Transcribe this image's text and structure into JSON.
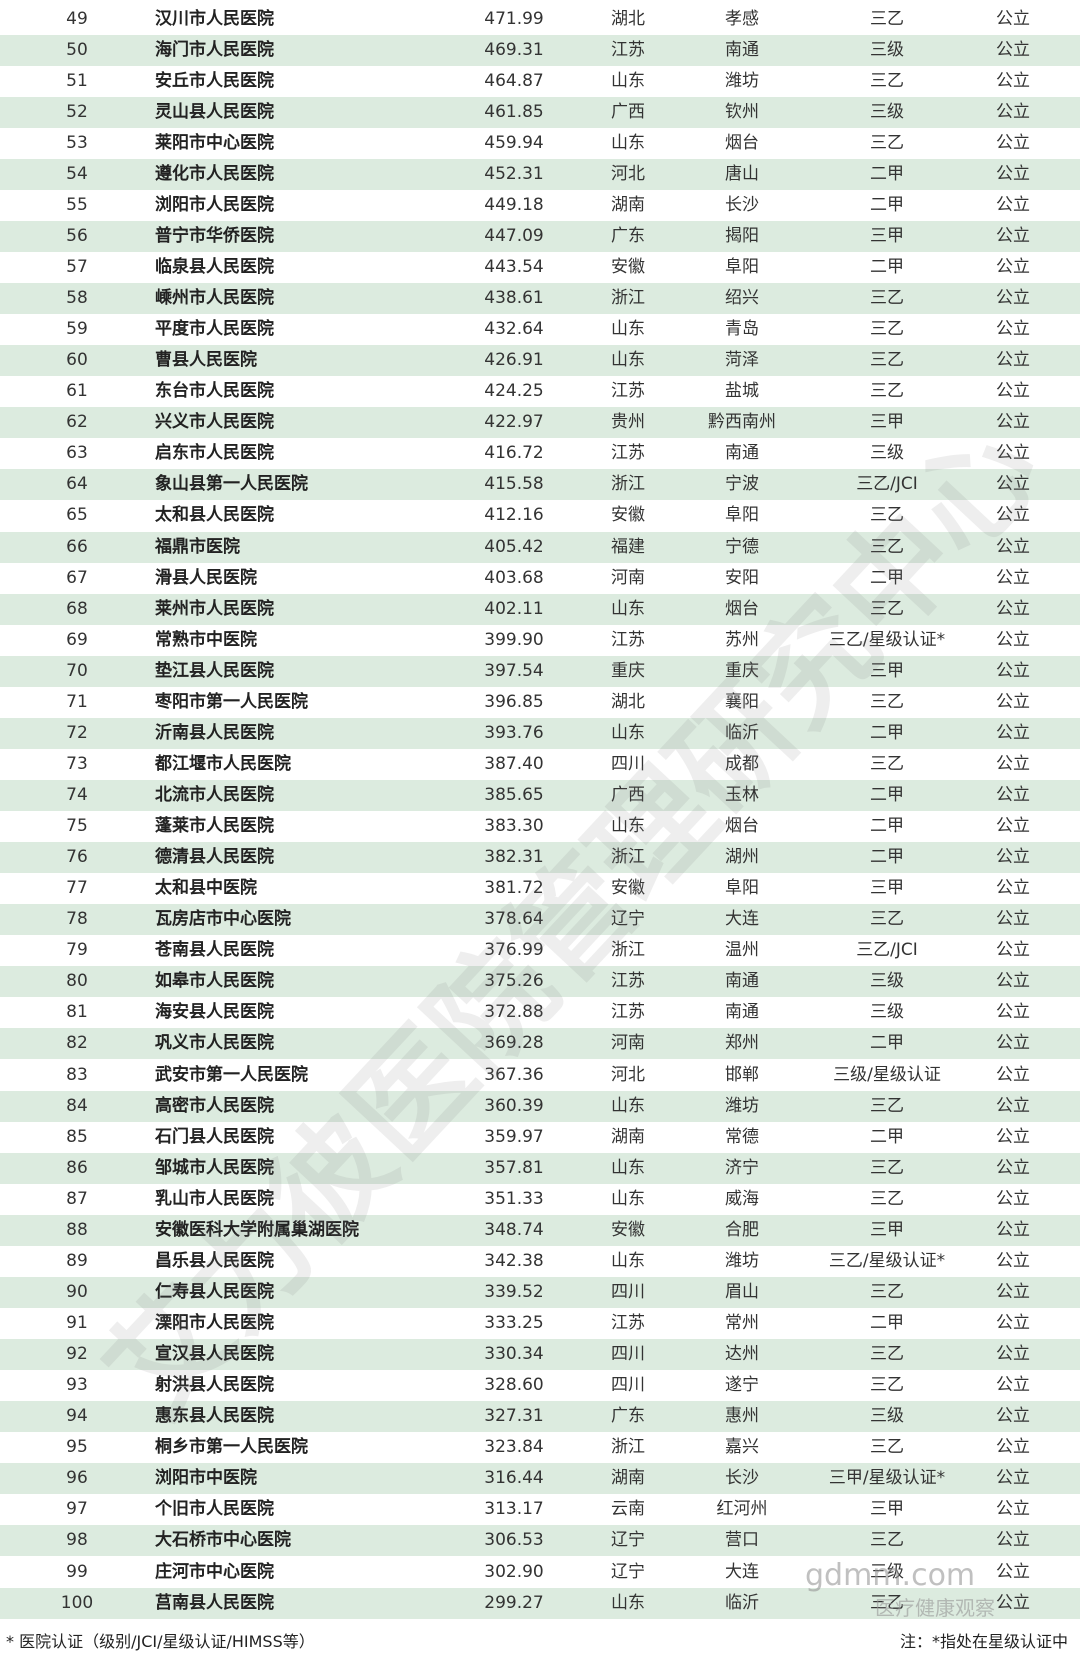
{
  "table": {
    "rows": [
      [
        "49",
        "汉川市人民医院",
        "471.99",
        "湖北",
        "孝感",
        "三乙",
        "公立"
      ],
      [
        "50",
        "海门市人民医院",
        "469.31",
        "江苏",
        "南通",
        "三级",
        "公立"
      ],
      [
        "51",
        "安丘市人民医院",
        "464.87",
        "山东",
        "潍坊",
        "三乙",
        "公立"
      ],
      [
        "52",
        "灵山县人民医院",
        "461.85",
        "广西",
        "钦州",
        "三级",
        "公立"
      ],
      [
        "53",
        "莱阳市中心医院",
        "459.94",
        "山东",
        "烟台",
        "三乙",
        "公立"
      ],
      [
        "54",
        "遵化市人民医院",
        "452.31",
        "河北",
        "唐山",
        "二甲",
        "公立"
      ],
      [
        "55",
        "浏阳市人民医院",
        "449.18",
        "湖南",
        "长沙",
        "二甲",
        "公立"
      ],
      [
        "56",
        "普宁市华侨医院",
        "447.09",
        "广东",
        "揭阳",
        "三甲",
        "公立"
      ],
      [
        "57",
        "临泉县人民医院",
        "443.54",
        "安徽",
        "阜阳",
        "二甲",
        "公立"
      ],
      [
        "58",
        "嵊州市人民医院",
        "438.61",
        "浙江",
        "绍兴",
        "三乙",
        "公立"
      ],
      [
        "59",
        "平度市人民医院",
        "432.64",
        "山东",
        "青岛",
        "三乙",
        "公立"
      ],
      [
        "60",
        "曹县人民医院",
        "426.91",
        "山东",
        "菏泽",
        "三乙",
        "公立"
      ],
      [
        "61",
        "东台市人民医院",
        "424.25",
        "江苏",
        "盐城",
        "三乙",
        "公立"
      ],
      [
        "62",
        "兴义市人民医院",
        "422.97",
        "贵州",
        "黔西南州",
        "三甲",
        "公立"
      ],
      [
        "63",
        "启东市人民医院",
        "416.72",
        "江苏",
        "南通",
        "三级",
        "公立"
      ],
      [
        "64",
        "象山县第一人民医院",
        "415.58",
        "浙江",
        "宁波",
        "三乙/JCI",
        "公立"
      ],
      [
        "65",
        "太和县人民医院",
        "412.16",
        "安徽",
        "阜阳",
        "三乙",
        "公立"
      ],
      [
        "66",
        "福鼎市医院",
        "405.42",
        "福建",
        "宁德",
        "三乙",
        "公立"
      ],
      [
        "67",
        "滑县人民医院",
        "403.68",
        "河南",
        "安阳",
        "二甲",
        "公立"
      ],
      [
        "68",
        "莱州市人民医院",
        "402.11",
        "山东",
        "烟台",
        "三乙",
        "公立"
      ],
      [
        "69",
        "常熟市中医院",
        "399.90",
        "江苏",
        "苏州",
        "三乙/星级认证*",
        "公立"
      ],
      [
        "70",
        "垫江县人民医院",
        "397.54",
        "重庆",
        "重庆",
        "三甲",
        "公立"
      ],
      [
        "71",
        "枣阳市第一人民医院",
        "396.85",
        "湖北",
        "襄阳",
        "三乙",
        "公立"
      ],
      [
        "72",
        "沂南县人民医院",
        "393.76",
        "山东",
        "临沂",
        "二甲",
        "公立"
      ],
      [
        "73",
        "都江堰市人民医院",
        "387.40",
        "四川",
        "成都",
        "三乙",
        "公立"
      ],
      [
        "74",
        "北流市人民医院",
        "385.65",
        "广西",
        "玉林",
        "二甲",
        "公立"
      ],
      [
        "75",
        "蓬莱市人民医院",
        "383.30",
        "山东",
        "烟台",
        "二甲",
        "公立"
      ],
      [
        "76",
        "德清县人民医院",
        "382.31",
        "浙江",
        "湖州",
        "二甲",
        "公立"
      ],
      [
        "77",
        "太和县中医院",
        "381.72",
        "安徽",
        "阜阳",
        "三甲",
        "公立"
      ],
      [
        "78",
        "瓦房店市中心医院",
        "378.64",
        "辽宁",
        "大连",
        "三乙",
        "公立"
      ],
      [
        "79",
        "苍南县人民医院",
        "376.99",
        "浙江",
        "温州",
        "三乙/JCI",
        "公立"
      ],
      [
        "80",
        "如皋市人民医院",
        "375.26",
        "江苏",
        "南通",
        "三级",
        "公立"
      ],
      [
        "81",
        "海安县人民医院",
        "372.88",
        "江苏",
        "南通",
        "三级",
        "公立"
      ],
      [
        "82",
        "巩义市人民医院",
        "369.28",
        "河南",
        "郑州",
        "二甲",
        "公立"
      ],
      [
        "83",
        "武安市第一人民医院",
        "367.36",
        "河北",
        "邯郸",
        "三级/星级认证",
        "公立"
      ],
      [
        "84",
        "高密市人民医院",
        "360.39",
        "山东",
        "潍坊",
        "三乙",
        "公立"
      ],
      [
        "85",
        "石门县人民医院",
        "359.97",
        "湖南",
        "常德",
        "二甲",
        "公立"
      ],
      [
        "86",
        "邹城市人民医院",
        "357.81",
        "山东",
        "济宁",
        "三乙",
        "公立"
      ],
      [
        "87",
        "乳山市人民医院",
        "351.33",
        "山东",
        "威海",
        "三乙",
        "公立"
      ],
      [
        "88",
        "安徽医科大学附属巢湖医院",
        "348.74",
        "安徽",
        "合肥",
        "三甲",
        "公立"
      ],
      [
        "89",
        "昌乐县人民医院",
        "342.38",
        "山东",
        "潍坊",
        "三乙/星级认证*",
        "公立"
      ],
      [
        "90",
        "仁寿县人民医院",
        "339.52",
        "四川",
        "眉山",
        "三乙",
        "公立"
      ],
      [
        "91",
        "溧阳市人民医院",
        "333.25",
        "江苏",
        "常州",
        "二甲",
        "公立"
      ],
      [
        "92",
        "宣汉县人民医院",
        "330.34",
        "四川",
        "达州",
        "三乙",
        "公立"
      ],
      [
        "93",
        "射洪县人民医院",
        "328.60",
        "四川",
        "遂宁",
        "三乙",
        "公立"
      ],
      [
        "94",
        "惠东县人民医院",
        "327.31",
        "广东",
        "惠州",
        "三级",
        "公立"
      ],
      [
        "95",
        "桐乡市第一人民医院",
        "323.84",
        "浙江",
        "嘉兴",
        "三乙",
        "公立"
      ],
      [
        "96",
        "浏阳市中医院",
        "316.44",
        "湖南",
        "长沙",
        "三甲/星级认证*",
        "公立"
      ],
      [
        "97",
        "个旧市人民医院",
        "313.17",
        "云南",
        "红河州",
        "三甲",
        "公立"
      ],
      [
        "98",
        "大石桥市中心医院",
        "306.53",
        "辽宁",
        "营口",
        "三乙",
        "公立"
      ],
      [
        "99",
        "庄河市中心医院",
        "302.90",
        "辽宁",
        "大连",
        "三级",
        "公立"
      ],
      [
        "100",
        "莒南县人民医院",
        "299.27",
        "山东",
        "临沂",
        "三乙",
        "公立"
      ]
    ]
  },
  "watermark": {
    "main": "艾力彼医院管理研究中心",
    "site": "gdmm.com",
    "account": "医疗健康观察"
  },
  "footer": {
    "left": "* 医院认证（级别/JCI/星级认证/HIMSS等）",
    "right": "注：*指处在星级认证中"
  }
}
